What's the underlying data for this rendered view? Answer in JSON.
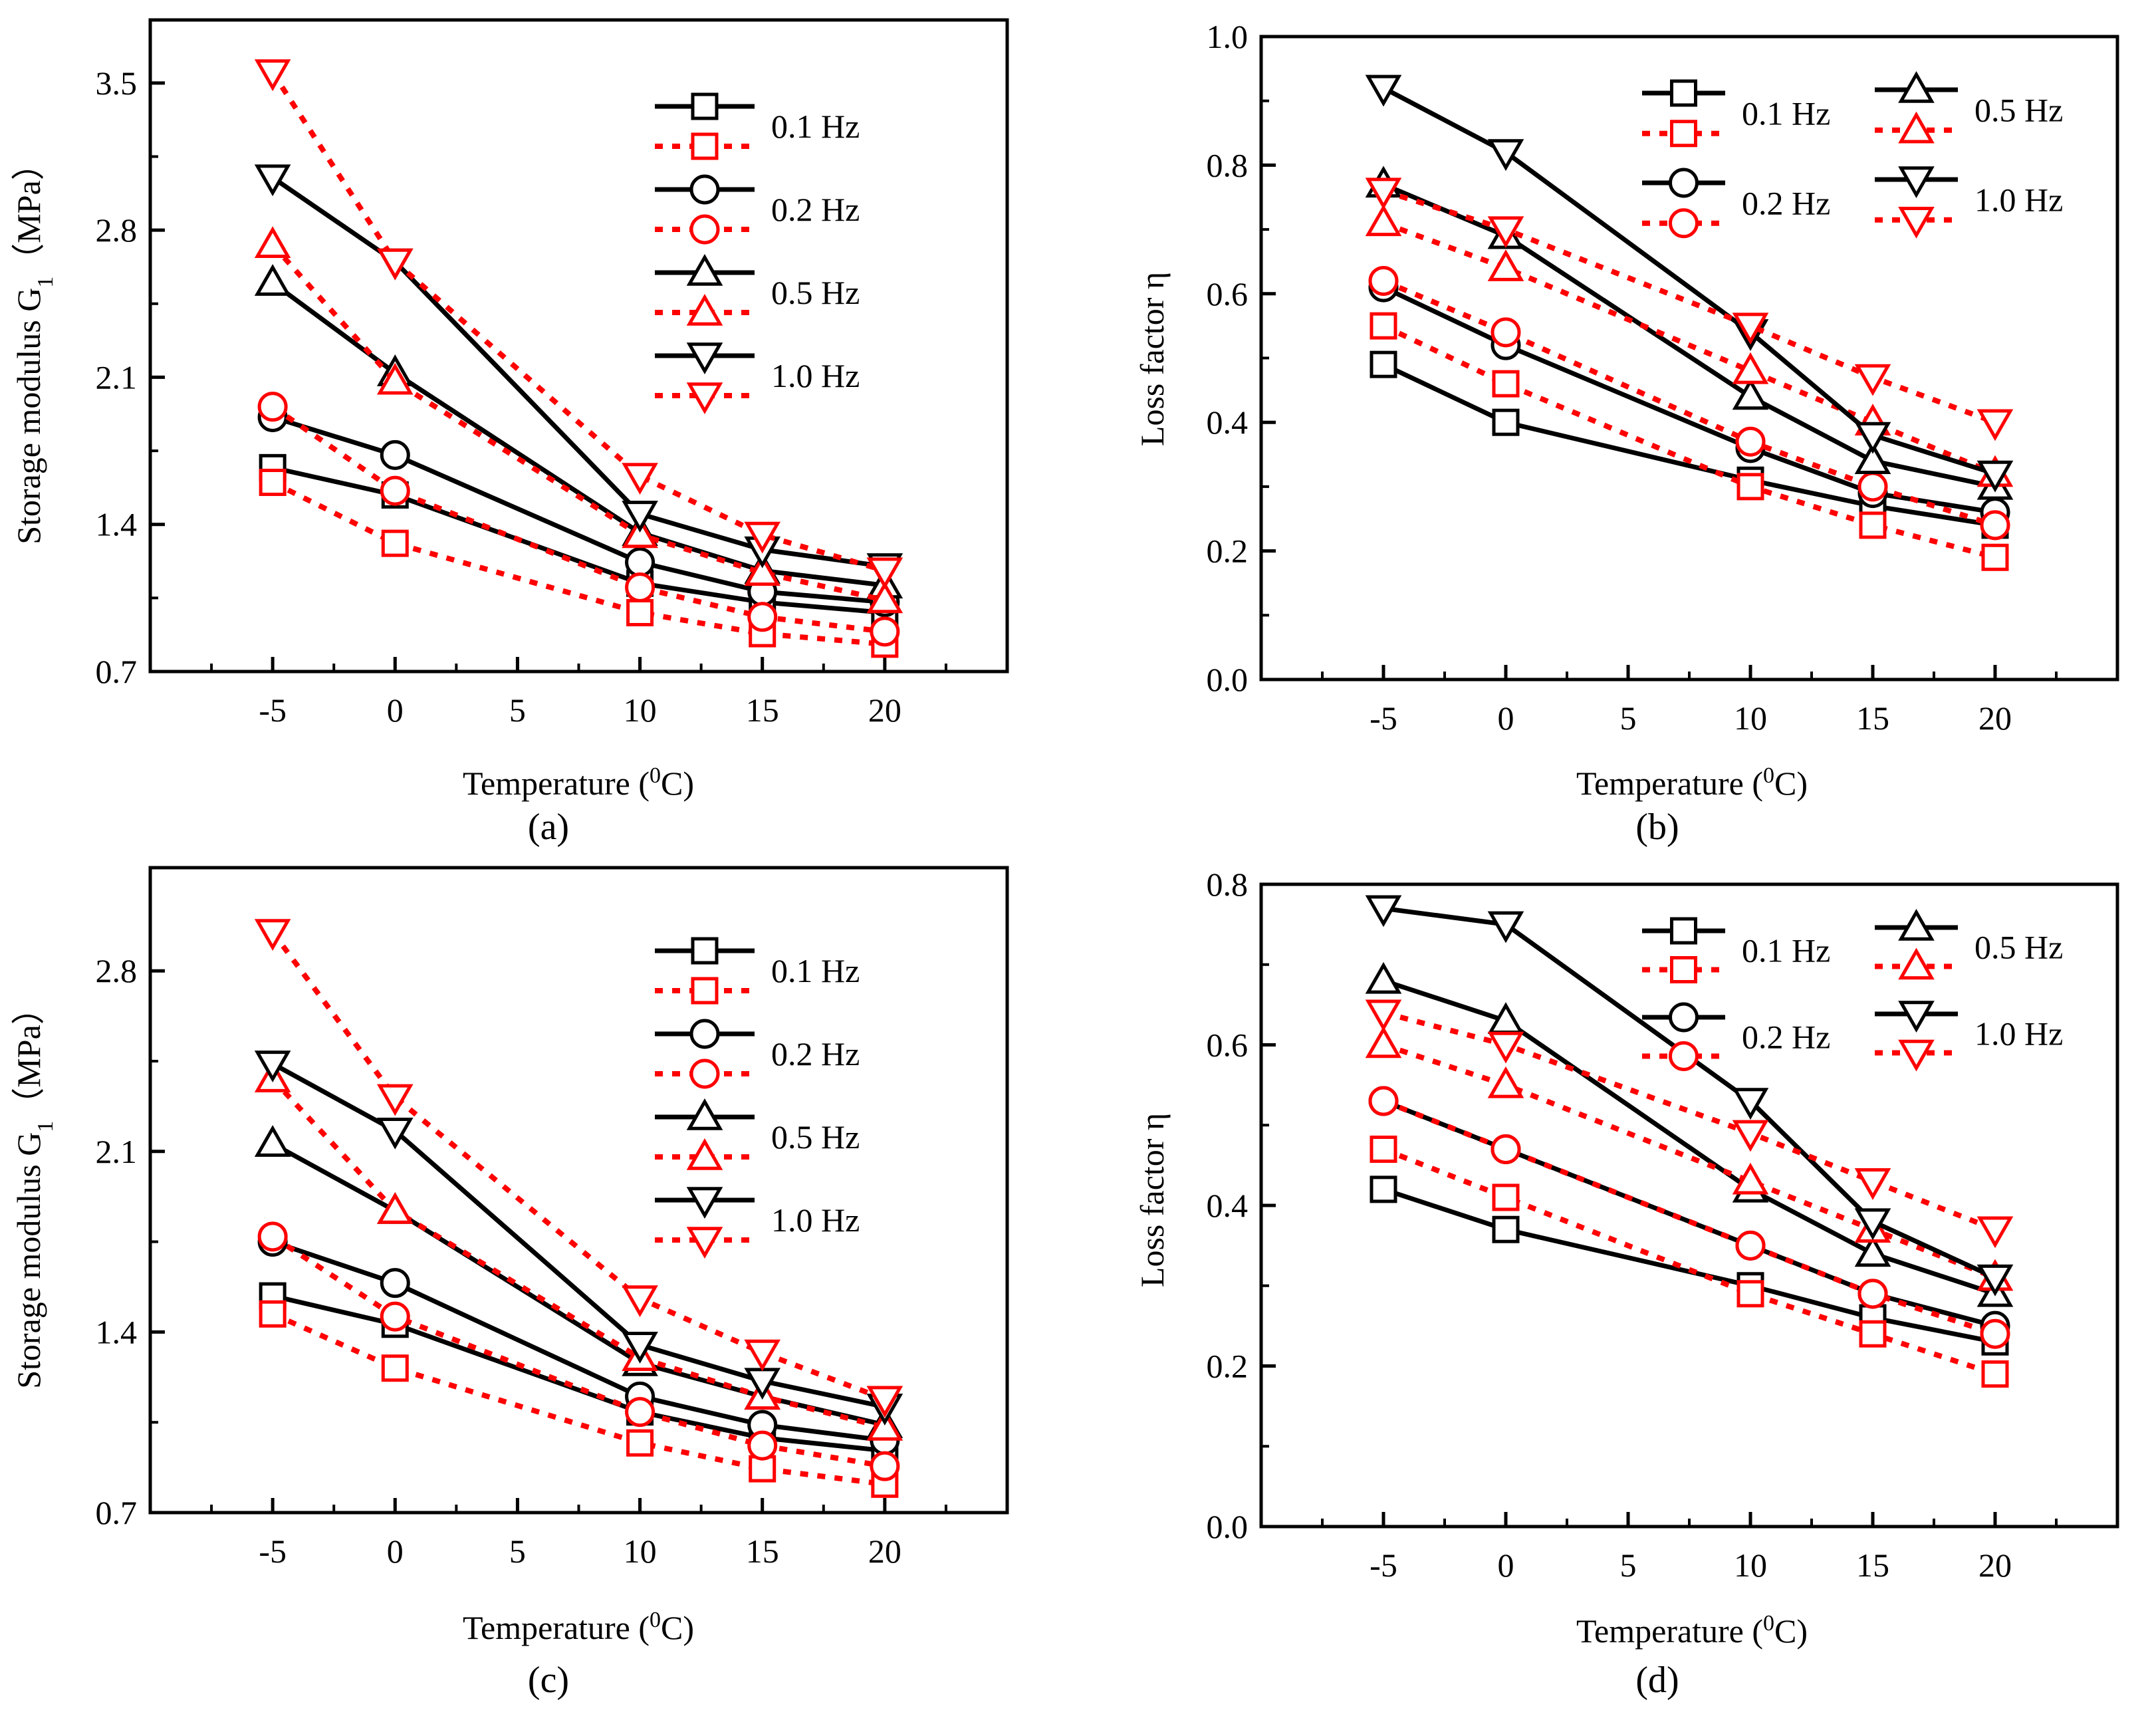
{
  "figure": {
    "colors": {
      "measured": "#000000",
      "predicted": "#ff0000",
      "axes": "#000000"
    }
  },
  "chart_data": [
    {
      "id": "a",
      "type": "line",
      "caption": "(a)",
      "xlabel_main": "Temperature (",
      "xlabel_sup": "0",
      "xlabel_end": "C)",
      "ylabel_main": "Storage modulus G",
      "ylabel_sub": "1",
      "ylabel_end": "（MPa）",
      "xlim": [
        -10,
        25
      ],
      "ylim": [
        0.7,
        3.8
      ],
      "xticks": [
        -5,
        0,
        5,
        10,
        15,
        20
      ],
      "xtick_labels": [
        "-5",
        "0",
        "5",
        "10",
        "15",
        "20"
      ],
      "yticks": [
        0.7,
        1.4,
        2.1,
        2.8,
        3.5
      ],
      "ytick_labels": [
        "0.7",
        "1.4",
        "2.1",
        "2.8",
        "3.5"
      ],
      "x": [
        -5,
        0,
        10,
        15,
        20
      ],
      "legend_position": "top-right",
      "legend_layout": "single",
      "legend_labels": [
        "0.1  Hz",
        "0.2  Hz",
        "0.5  Hz",
        "1.0  Hz"
      ],
      "series": [
        {
          "name": "0.1 Hz",
          "style": "solid",
          "marker": "square",
          "values": [
            1.67,
            1.54,
            1.12,
            1.03,
            0.98
          ]
        },
        {
          "name": "0.1 Hz",
          "style": "dotted",
          "marker": "square",
          "values": [
            1.6,
            1.31,
            0.98,
            0.88,
            0.83
          ]
        },
        {
          "name": "0.2 Hz",
          "style": "solid",
          "marker": "circle",
          "values": [
            1.91,
            1.73,
            1.22,
            1.08,
            1.03
          ]
        },
        {
          "name": "0.2 Hz",
          "style": "dotted",
          "marker": "circle",
          "values": [
            1.96,
            1.56,
            1.1,
            0.96,
            0.89
          ]
        },
        {
          "name": "0.5 Hz",
          "style": "solid",
          "marker": "triangle-up",
          "values": [
            2.55,
            2.12,
            1.36,
            1.18,
            1.11
          ]
        },
        {
          "name": "0.5 Hz",
          "style": "dotted",
          "marker": "triangle-up",
          "values": [
            2.73,
            2.08,
            1.35,
            1.17,
            1.04
          ]
        },
        {
          "name": "1.0 Hz",
          "style": "solid",
          "marker": "triangle-down",
          "values": [
            3.05,
            2.65,
            1.45,
            1.28,
            1.2
          ]
        },
        {
          "name": "1.0 Hz",
          "style": "dotted",
          "marker": "triangle-down",
          "values": [
            3.55,
            2.65,
            1.63,
            1.35,
            1.18
          ]
        }
      ]
    },
    {
      "id": "b",
      "type": "line",
      "caption": "(b)",
      "xlabel_main": "Temperature (",
      "xlabel_sup": "0",
      "xlabel_end": "C)",
      "ylabel_main": "Loss factor η",
      "ylabel_sub": "",
      "ylabel_end": "",
      "xlim": [
        -10,
        25
      ],
      "ylim": [
        0,
        1.0
      ],
      "xticks": [
        -5,
        0,
        5,
        10,
        15,
        20
      ],
      "xtick_labels": [
        "-5",
        "0",
        "5",
        "10",
        "15",
        "20"
      ],
      "yticks": [
        0,
        0.2,
        0.4,
        0.6,
        0.8,
        1.0
      ],
      "ytick_labels": [
        "0.0",
        "0.2",
        "0.4",
        "0.6",
        "0.8",
        "1.0"
      ],
      "x": [
        -5,
        0,
        10,
        15,
        20
      ],
      "legend_position": "top-right",
      "legend_layout": "two-column",
      "legend_labels": [
        "0.1  Hz",
        "0.2  Hz",
        "0.5  Hz",
        "1.0  Hz"
      ],
      "series": [
        {
          "name": "0.1 Hz",
          "style": "solid",
          "marker": "square",
          "values": [
            0.49,
            0.4,
            0.31,
            0.27,
            0.24
          ]
        },
        {
          "name": "0.1 Hz",
          "style": "dotted",
          "marker": "square",
          "values": [
            0.55,
            0.46,
            0.3,
            0.24,
            0.19
          ]
        },
        {
          "name": "0.2 Hz",
          "style": "solid",
          "marker": "circle",
          "values": [
            0.61,
            0.52,
            0.36,
            0.29,
            0.26
          ]
        },
        {
          "name": "0.2 Hz",
          "style": "dotted",
          "marker": "circle",
          "values": [
            0.62,
            0.54,
            0.37,
            0.3,
            0.24
          ]
        },
        {
          "name": "0.5 Hz",
          "style": "solid",
          "marker": "triangle-up",
          "values": [
            0.77,
            0.69,
            0.44,
            0.34,
            0.3
          ]
        },
        {
          "name": "0.5 Hz",
          "style": "dotted",
          "marker": "triangle-up",
          "values": [
            0.71,
            0.64,
            0.48,
            0.4,
            0.32
          ]
        },
        {
          "name": "1.0 Hz",
          "style": "solid",
          "marker": "triangle-down",
          "values": [
            0.92,
            0.82,
            0.54,
            0.38,
            0.32
          ]
        },
        {
          "name": "1.0 Hz",
          "style": "dotted",
          "marker": "triangle-down",
          "values": [
            0.76,
            0.7,
            0.55,
            0.47,
            0.4
          ]
        }
      ]
    },
    {
      "id": "c",
      "type": "line",
      "caption": "(c)",
      "xlabel_main": "Temperature (",
      "xlabel_sup": "0",
      "xlabel_end": "C)",
      "ylabel_main": "Storage modulus G",
      "ylabel_sub": "1",
      "ylabel_end": "（MPa）",
      "xlim": [
        -10,
        25
      ],
      "ylim": [
        0.7,
        3.2
      ],
      "xticks": [
        -5,
        0,
        5,
        10,
        15,
        20
      ],
      "xtick_labels": [
        "-5",
        "0",
        "5",
        "10",
        "15",
        "20"
      ],
      "yticks": [
        0.7,
        1.4,
        2.1,
        2.8
      ],
      "ytick_labels": [
        "0.7",
        "1.4",
        "2.1",
        "2.8"
      ],
      "x": [
        -5,
        0,
        10,
        15,
        20
      ],
      "legend_position": "top-right",
      "legend_layout": "single",
      "legend_labels": [
        "0.1  Hz",
        "0.2  Hz",
        "0.5  Hz",
        "1.0  Hz"
      ],
      "series": [
        {
          "name": "0.1 Hz",
          "style": "solid",
          "marker": "square",
          "values": [
            1.54,
            1.43,
            1.09,
            0.99,
            0.94
          ]
        },
        {
          "name": "0.1 Hz",
          "style": "dotted",
          "marker": "square",
          "values": [
            1.47,
            1.26,
            0.97,
            0.87,
            0.81
          ]
        },
        {
          "name": "0.2 Hz",
          "style": "solid",
          "marker": "circle",
          "values": [
            1.75,
            1.59,
            1.15,
            1.04,
            0.98
          ]
        },
        {
          "name": "0.2 Hz",
          "style": "dotted",
          "marker": "circle",
          "values": [
            1.77,
            1.46,
            1.09,
            0.96,
            0.88
          ]
        },
        {
          "name": "0.5 Hz",
          "style": "solid",
          "marker": "triangle-up",
          "values": [
            2.13,
            1.87,
            1.28,
            1.15,
            1.04
          ]
        },
        {
          "name": "0.5 Hz",
          "style": "dotted",
          "marker": "triangle-up",
          "values": [
            2.38,
            1.87,
            1.3,
            1.15,
            1.03
          ]
        },
        {
          "name": "1.0 Hz",
          "style": "solid",
          "marker": "triangle-down",
          "values": [
            2.44,
            2.18,
            1.35,
            1.21,
            1.11
          ]
        },
        {
          "name": "1.0 Hz",
          "style": "dotted",
          "marker": "triangle-down",
          "values": [
            2.95,
            2.31,
            1.53,
            1.32,
            1.14
          ]
        }
      ]
    },
    {
      "id": "d",
      "type": "line",
      "caption": "(d)",
      "xlabel_main": "Temperature (",
      "xlabel_sup": "0",
      "xlabel_end": "C)",
      "ylabel_main": "Loss factor η",
      "ylabel_sub": "",
      "ylabel_end": "",
      "xlim": [
        -10,
        25
      ],
      "ylim": [
        0,
        0.8
      ],
      "xticks": [
        -5,
        0,
        5,
        10,
        15,
        20
      ],
      "xtick_labels": [
        "-5",
        "0",
        "5",
        "10",
        "15",
        "20"
      ],
      "yticks": [
        0,
        0.2,
        0.4,
        0.6,
        0.8
      ],
      "ytick_labels": [
        "0.0",
        "0.2",
        "0.4",
        "0.6",
        "0.8"
      ],
      "x": [
        -5,
        0,
        10,
        15,
        20
      ],
      "legend_position": "top-right",
      "legend_layout": "two-column",
      "legend_labels": [
        "0.1  Hz",
        "0.2  Hz",
        "0.5  Hz",
        "1.0  Hz"
      ],
      "series": [
        {
          "name": "0.1 Hz",
          "style": "solid",
          "marker": "square",
          "values": [
            0.42,
            0.37,
            0.3,
            0.26,
            0.23
          ]
        },
        {
          "name": "0.1 Hz",
          "style": "dotted",
          "marker": "square",
          "values": [
            0.47,
            0.41,
            0.29,
            0.24,
            0.19
          ]
        },
        {
          "name": "0.2 Hz",
          "style": "solid",
          "marker": "circle",
          "values": [
            0.53,
            0.47,
            0.35,
            0.29,
            0.25
          ]
        },
        {
          "name": "0.2 Hz",
          "style": "dotted",
          "marker": "circle",
          "values": [
            0.53,
            0.47,
            0.35,
            0.29,
            0.24
          ]
        },
        {
          "name": "0.5 Hz",
          "style": "solid",
          "marker": "triangle-up",
          "values": [
            0.68,
            0.63,
            0.42,
            0.34,
            0.29
          ]
        },
        {
          "name": "0.5 Hz",
          "style": "dotted",
          "marker": "triangle-up",
          "values": [
            0.6,
            0.55,
            0.43,
            0.37,
            0.31
          ]
        },
        {
          "name": "1.0 Hz",
          "style": "solid",
          "marker": "triangle-down",
          "values": [
            0.77,
            0.75,
            0.53,
            0.38,
            0.31
          ]
        },
        {
          "name": "1.0 Hz",
          "style": "dotted",
          "marker": "triangle-down",
          "values": [
            0.64,
            0.6,
            0.49,
            0.43,
            0.37
          ]
        }
      ]
    }
  ]
}
